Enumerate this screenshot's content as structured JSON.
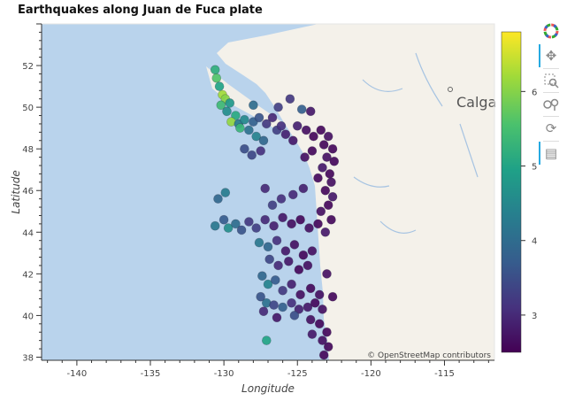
{
  "chart_data": {
    "type": "scatter",
    "title": "Earthquakes along Juan de Fuca plate",
    "xlabel": "Longitude",
    "ylabel": "Latitude",
    "xlim": [
      -142.4,
      -111.6
    ],
    "ylim": [
      37.85,
      54.0
    ],
    "x_ticks": [
      -140,
      -135,
      -130,
      -125,
      -120,
      -115
    ],
    "x_tick_labels": [
      "-140",
      "-135",
      "-130",
      "-125",
      "-120",
      "-115"
    ],
    "y_ticks": [
      38,
      40,
      42,
      44,
      46,
      48,
      50,
      52
    ],
    "y_tick_labels": [
      "38",
      "40",
      "42",
      "44",
      "46",
      "48",
      "50",
      "52"
    ],
    "color_field": "magnitude",
    "colorbar": {
      "min": 2.5,
      "max": 6.8,
      "ticks": [
        3,
        4,
        5,
        6
      ],
      "tick_labels": [
        "3",
        "4",
        "5",
        "6"
      ],
      "colormap": "viridis"
    },
    "map_labels": {
      "city": "Calga",
      "attribution": "© OpenStreetMap contributors"
    },
    "points": [
      {
        "x": -130.6,
        "y": 51.8,
        "c": 5.2
      },
      {
        "x": -130.5,
        "y": 51.4,
        "c": 5.6
      },
      {
        "x": -130.3,
        "y": 51.0,
        "c": 5.0
      },
      {
        "x": -130.1,
        "y": 50.6,
        "c": 6.2
      },
      {
        "x": -129.9,
        "y": 50.4,
        "c": 6.0
      },
      {
        "x": -130.2,
        "y": 50.1,
        "c": 5.4
      },
      {
        "x": -129.6,
        "y": 50.2,
        "c": 4.8
      },
      {
        "x": -129.8,
        "y": 49.8,
        "c": 4.6
      },
      {
        "x": -129.2,
        "y": 49.6,
        "c": 5.1
      },
      {
        "x": -129.5,
        "y": 49.3,
        "c": 6.1
      },
      {
        "x": -129.0,
        "y": 49.2,
        "c": 4.3
      },
      {
        "x": -128.6,
        "y": 49.4,
        "c": 4.5
      },
      {
        "x": -128.9,
        "y": 49.0,
        "c": 5.3
      },
      {
        "x": -128.3,
        "y": 48.9,
        "c": 4.1
      },
      {
        "x": -128.0,
        "y": 49.3,
        "c": 3.8
      },
      {
        "x": -127.6,
        "y": 49.5,
        "c": 3.6
      },
      {
        "x": -127.1,
        "y": 49.2,
        "c": 3.2
      },
      {
        "x": -126.7,
        "y": 49.5,
        "c": 3.0
      },
      {
        "x": -127.8,
        "y": 48.6,
        "c": 4.4
      },
      {
        "x": -127.3,
        "y": 48.4,
        "c": 3.9
      },
      {
        "x": -126.4,
        "y": 48.9,
        "c": 3.3
      },
      {
        "x": -125.8,
        "y": 48.7,
        "c": 2.9
      },
      {
        "x": -126.1,
        "y": 49.1,
        "c": 3.1
      },
      {
        "x": -128.6,
        "y": 48.0,
        "c": 3.5
      },
      {
        "x": -128.1,
        "y": 47.7,
        "c": 3.4
      },
      {
        "x": -127.5,
        "y": 47.9,
        "c": 3.1
      },
      {
        "x": -124.7,
        "y": 49.9,
        "c": 3.8
      },
      {
        "x": -124.1,
        "y": 49.8,
        "c": 2.8
      },
      {
        "x": -124.4,
        "y": 48.9,
        "c": 2.7
      },
      {
        "x": -123.9,
        "y": 48.6,
        "c": 2.6
      },
      {
        "x": -123.4,
        "y": 48.9,
        "c": 2.6
      },
      {
        "x": -122.9,
        "y": 48.6,
        "c": 2.7
      },
      {
        "x": -123.2,
        "y": 48.2,
        "c": 2.6
      },
      {
        "x": -122.6,
        "y": 48.0,
        "c": 2.6
      },
      {
        "x": -123.0,
        "y": 47.6,
        "c": 2.7
      },
      {
        "x": -122.5,
        "y": 47.4,
        "c": 2.6
      },
      {
        "x": -123.3,
        "y": 47.1,
        "c": 2.8
      },
      {
        "x": -122.8,
        "y": 46.8,
        "c": 2.6
      },
      {
        "x": -123.6,
        "y": 46.6,
        "c": 2.6
      },
      {
        "x": -122.7,
        "y": 46.4,
        "c": 2.7
      },
      {
        "x": -123.1,
        "y": 46.0,
        "c": 2.6
      },
      {
        "x": -122.6,
        "y": 45.7,
        "c": 2.8
      },
      {
        "x": -122.9,
        "y": 45.3,
        "c": 2.6
      },
      {
        "x": -123.4,
        "y": 45.0,
        "c": 2.7
      },
      {
        "x": -122.7,
        "y": 44.6,
        "c": 2.6
      },
      {
        "x": -124.6,
        "y": 46.1,
        "c": 2.9
      },
      {
        "x": -125.3,
        "y": 45.8,
        "c": 3.0
      },
      {
        "x": -126.1,
        "y": 45.6,
        "c": 3.1
      },
      {
        "x": -126.7,
        "y": 45.3,
        "c": 3.3
      },
      {
        "x": -127.2,
        "y": 46.1,
        "c": 3.0
      },
      {
        "x": -129.9,
        "y": 45.9,
        "c": 4.3
      },
      {
        "x": -130.4,
        "y": 45.6,
        "c": 3.9
      },
      {
        "x": -130.0,
        "y": 44.6,
        "c": 3.7
      },
      {
        "x": -130.6,
        "y": 44.3,
        "c": 4.2
      },
      {
        "x": -129.7,
        "y": 44.2,
        "c": 4.6
      },
      {
        "x": -129.2,
        "y": 44.4,
        "c": 4.0
      },
      {
        "x": -128.8,
        "y": 44.1,
        "c": 3.6
      },
      {
        "x": -128.3,
        "y": 44.5,
        "c": 3.2
      },
      {
        "x": -127.8,
        "y": 44.2,
        "c": 3.3
      },
      {
        "x": -127.2,
        "y": 44.6,
        "c": 3.0
      },
      {
        "x": -126.6,
        "y": 44.3,
        "c": 2.9
      },
      {
        "x": -126.0,
        "y": 44.7,
        "c": 2.8
      },
      {
        "x": -125.4,
        "y": 44.4,
        "c": 2.7
      },
      {
        "x": -124.8,
        "y": 44.6,
        "c": 2.6
      },
      {
        "x": -124.2,
        "y": 44.2,
        "c": 2.7
      },
      {
        "x": -123.6,
        "y": 44.4,
        "c": 2.6
      },
      {
        "x": -127.6,
        "y": 43.5,
        "c": 4.2
      },
      {
        "x": -127.0,
        "y": 43.3,
        "c": 3.9
      },
      {
        "x": -126.4,
        "y": 43.6,
        "c": 3.1
      },
      {
        "x": -125.8,
        "y": 43.1,
        "c": 2.8
      },
      {
        "x": -125.2,
        "y": 43.4,
        "c": 2.7
      },
      {
        "x": -124.6,
        "y": 42.9,
        "c": 2.6
      },
      {
        "x": -124.0,
        "y": 43.1,
        "c": 2.7
      },
      {
        "x": -126.9,
        "y": 42.7,
        "c": 3.4
      },
      {
        "x": -126.3,
        "y": 42.4,
        "c": 3.0
      },
      {
        "x": -125.6,
        "y": 42.6,
        "c": 2.8
      },
      {
        "x": -124.9,
        "y": 42.2,
        "c": 2.6
      },
      {
        "x": -124.3,
        "y": 42.4,
        "c": 2.7
      },
      {
        "x": -127.4,
        "y": 41.9,
        "c": 3.9
      },
      {
        "x": -127.0,
        "y": 41.5,
        "c": 4.4
      },
      {
        "x": -126.5,
        "y": 41.7,
        "c": 3.7
      },
      {
        "x": -126.0,
        "y": 41.2,
        "c": 3.2
      },
      {
        "x": -125.4,
        "y": 41.5,
        "c": 2.9
      },
      {
        "x": -124.8,
        "y": 41.0,
        "c": 2.7
      },
      {
        "x": -124.1,
        "y": 41.3,
        "c": 2.6
      },
      {
        "x": -123.5,
        "y": 41.0,
        "c": 2.7
      },
      {
        "x": -127.5,
        "y": 40.9,
        "c": 3.6
      },
      {
        "x": -127.1,
        "y": 40.6,
        "c": 4.1
      },
      {
        "x": -126.6,
        "y": 40.5,
        "c": 3.4
      },
      {
        "x": -126.0,
        "y": 40.4,
        "c": 3.8
      },
      {
        "x": -125.4,
        "y": 40.6,
        "c": 3.1
      },
      {
        "x": -124.9,
        "y": 40.3,
        "c": 2.9
      },
      {
        "x": -124.3,
        "y": 40.4,
        "c": 2.8
      },
      {
        "x": -123.8,
        "y": 40.6,
        "c": 2.6
      },
      {
        "x": -123.3,
        "y": 40.3,
        "c": 2.7
      },
      {
        "x": -127.3,
        "y": 40.2,
        "c": 3.0
      },
      {
        "x": -126.4,
        "y": 39.9,
        "c": 2.8
      },
      {
        "x": -125.2,
        "y": 40.0,
        "c": 3.5
      },
      {
        "x": -124.1,
        "y": 39.8,
        "c": 2.7
      },
      {
        "x": -123.5,
        "y": 39.6,
        "c": 2.6
      },
      {
        "x": -123.0,
        "y": 39.2,
        "c": 2.6
      },
      {
        "x": -124.0,
        "y": 39.1,
        "c": 2.8
      },
      {
        "x": -123.3,
        "y": 38.8,
        "c": 2.7
      },
      {
        "x": -122.9,
        "y": 38.5,
        "c": 2.6
      },
      {
        "x": -123.2,
        "y": 38.1,
        "c": 2.6
      },
      {
        "x": -127.1,
        "y": 38.8,
        "c": 5.0
      },
      {
        "x": -122.6,
        "y": 40.9,
        "c": 2.6
      },
      {
        "x": -123.0,
        "y": 42.0,
        "c": 2.7
      },
      {
        "x": -123.1,
        "y": 44.0,
        "c": 2.8
      },
      {
        "x": -124.5,
        "y": 47.6,
        "c": 2.7
      },
      {
        "x": -124.0,
        "y": 47.9,
        "c": 2.6
      },
      {
        "x": -125.3,
        "y": 48.4,
        "c": 2.8
      },
      {
        "x": -125.0,
        "y": 49.1,
        "c": 2.9
      },
      {
        "x": -125.5,
        "y": 50.4,
        "c": 3.2
      },
      {
        "x": -126.3,
        "y": 50.0,
        "c": 3.3
      },
      {
        "x": -128.0,
        "y": 50.1,
        "c": 4.0
      }
    ]
  }
}
